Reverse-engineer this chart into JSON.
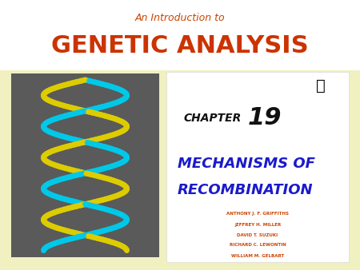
{
  "bg_color": "#f0f0c0",
  "header_subtitle": "An Introduction to",
  "header_subtitle_color": "#cc4400",
  "header_title": "GENETIC ANALYSIS",
  "header_title_color": "#cc3300",
  "chapter_label": "CHAPTER",
  "chapter_number": "19",
  "chapter_color": "#111111",
  "main_title_line1": "Mechanisms of",
  "main_title_line2": "Recombination",
  "main_title_color": "#1a1acc",
  "authors": [
    "ANTHONY J. F. GRIFFITHS",
    "JEFFREY H. MILLER",
    "DAVID T. SUZUKI",
    "RICHARD C. LEWONTIN",
    "WILLIAM M. GELBART"
  ],
  "author_color": "#cc4400",
  "dna_box_color": "#5a5a5a",
  "right_panel_color": "#ffffff",
  "white_banner_color": "#ffffff"
}
